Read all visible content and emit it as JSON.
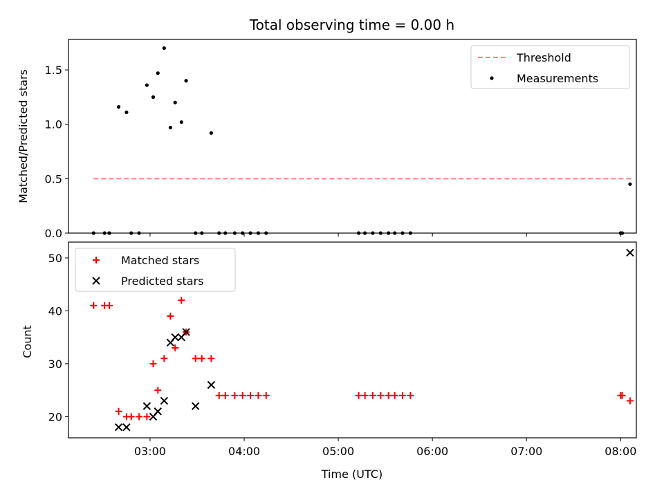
{
  "chart_data": [
    {
      "type": "scatter",
      "title": "Total observing time = 0.00 h",
      "ylabel": "Matched/Predicted stars",
      "xlabel": "",
      "x_unit": "minutes after 00:00 UTC",
      "xlim": [
        128,
        490
      ],
      "ylim": [
        0,
        1.78
      ],
      "yticks": [
        0.0,
        0.5,
        1.0,
        1.5
      ],
      "ytick_labels": [
        "0.0",
        "0.5",
        "1.0",
        "1.5"
      ],
      "xticks": [
        180,
        240,
        300,
        360,
        420,
        480
      ],
      "xtick_labels": [
        "",
        "",
        "",
        "",
        "",
        ""
      ],
      "legend_position": "upper right",
      "series": [
        {
          "name": "Threshold",
          "kind": "line",
          "style": "dashed",
          "color": "#ff7f7f",
          "x": [
            144,
            488
          ],
          "y": [
            0.5,
            0.5
          ]
        },
        {
          "name": "Measurements",
          "kind": "scatter",
          "marker": "dot",
          "color": "#000000",
          "x": [
            144,
            151,
            154,
            160,
            165,
            168,
            173,
            178,
            182,
            185,
            189,
            193,
            196,
            200,
            203,
            209,
            213,
            219,
            224,
            228,
            234,
            239,
            244,
            249,
            254,
            313,
            317,
            322,
            327,
            332,
            336,
            341,
            346,
            480,
            481,
            486
          ],
          "y": [
            0,
            0,
            0,
            1.16,
            1.11,
            0,
            0,
            1.36,
            1.25,
            1.47,
            1.7,
            0.97,
            1.2,
            1.02,
            1.4,
            0,
            0,
            0.92,
            0,
            0,
            0,
            0,
            0,
            0,
            0,
            0,
            0,
            0,
            0,
            0,
            0,
            0,
            0,
            0,
            0,
            0.45
          ]
        }
      ]
    },
    {
      "type": "scatter",
      "title": "",
      "ylabel": "Count",
      "xlabel": "Time (UTC)",
      "x_unit": "minutes after 00:00 UTC",
      "xlim": [
        128,
        490
      ],
      "ylim": [
        16,
        53
      ],
      "yticks": [
        20,
        30,
        40,
        50
      ],
      "ytick_labels": [
        "20",
        "30",
        "40",
        "50"
      ],
      "xticks": [
        180,
        240,
        300,
        360,
        420,
        480
      ],
      "xtick_labels": [
        "03:00",
        "04:00",
        "05:00",
        "06:00",
        "07:00",
        "08:00"
      ],
      "legend_position": "upper left",
      "series": [
        {
          "name": "Matched stars",
          "kind": "scatter",
          "marker": "plus",
          "color": "#ff0000",
          "x": [
            144,
            151,
            154,
            160,
            165,
            168,
            173,
            178,
            182,
            185,
            189,
            193,
            196,
            200,
            203,
            209,
            213,
            219,
            224,
            228,
            234,
            239,
            244,
            249,
            254,
            313,
            317,
            322,
            327,
            332,
            336,
            341,
            346,
            480,
            481,
            486
          ],
          "y": [
            41,
            41,
            41,
            21,
            20,
            20,
            20,
            20,
            30,
            25,
            31,
            39,
            33,
            42,
            36,
            31,
            31,
            31,
            24,
            24,
            24,
            24,
            24,
            24,
            24,
            24,
            24,
            24,
            24,
            24,
            24,
            24,
            24,
            24,
            24,
            23
          ]
        },
        {
          "name": "Predicted stars",
          "kind": "scatter",
          "marker": "x",
          "color": "#000000",
          "x": [
            160,
            165,
            178,
            182,
            185,
            189,
            193,
            196,
            200,
            203,
            209,
            219,
            486
          ],
          "y": [
            18,
            18,
            22,
            20,
            21,
            23,
            34,
            35,
            35,
            36,
            22,
            26,
            51
          ]
        }
      ]
    }
  ]
}
